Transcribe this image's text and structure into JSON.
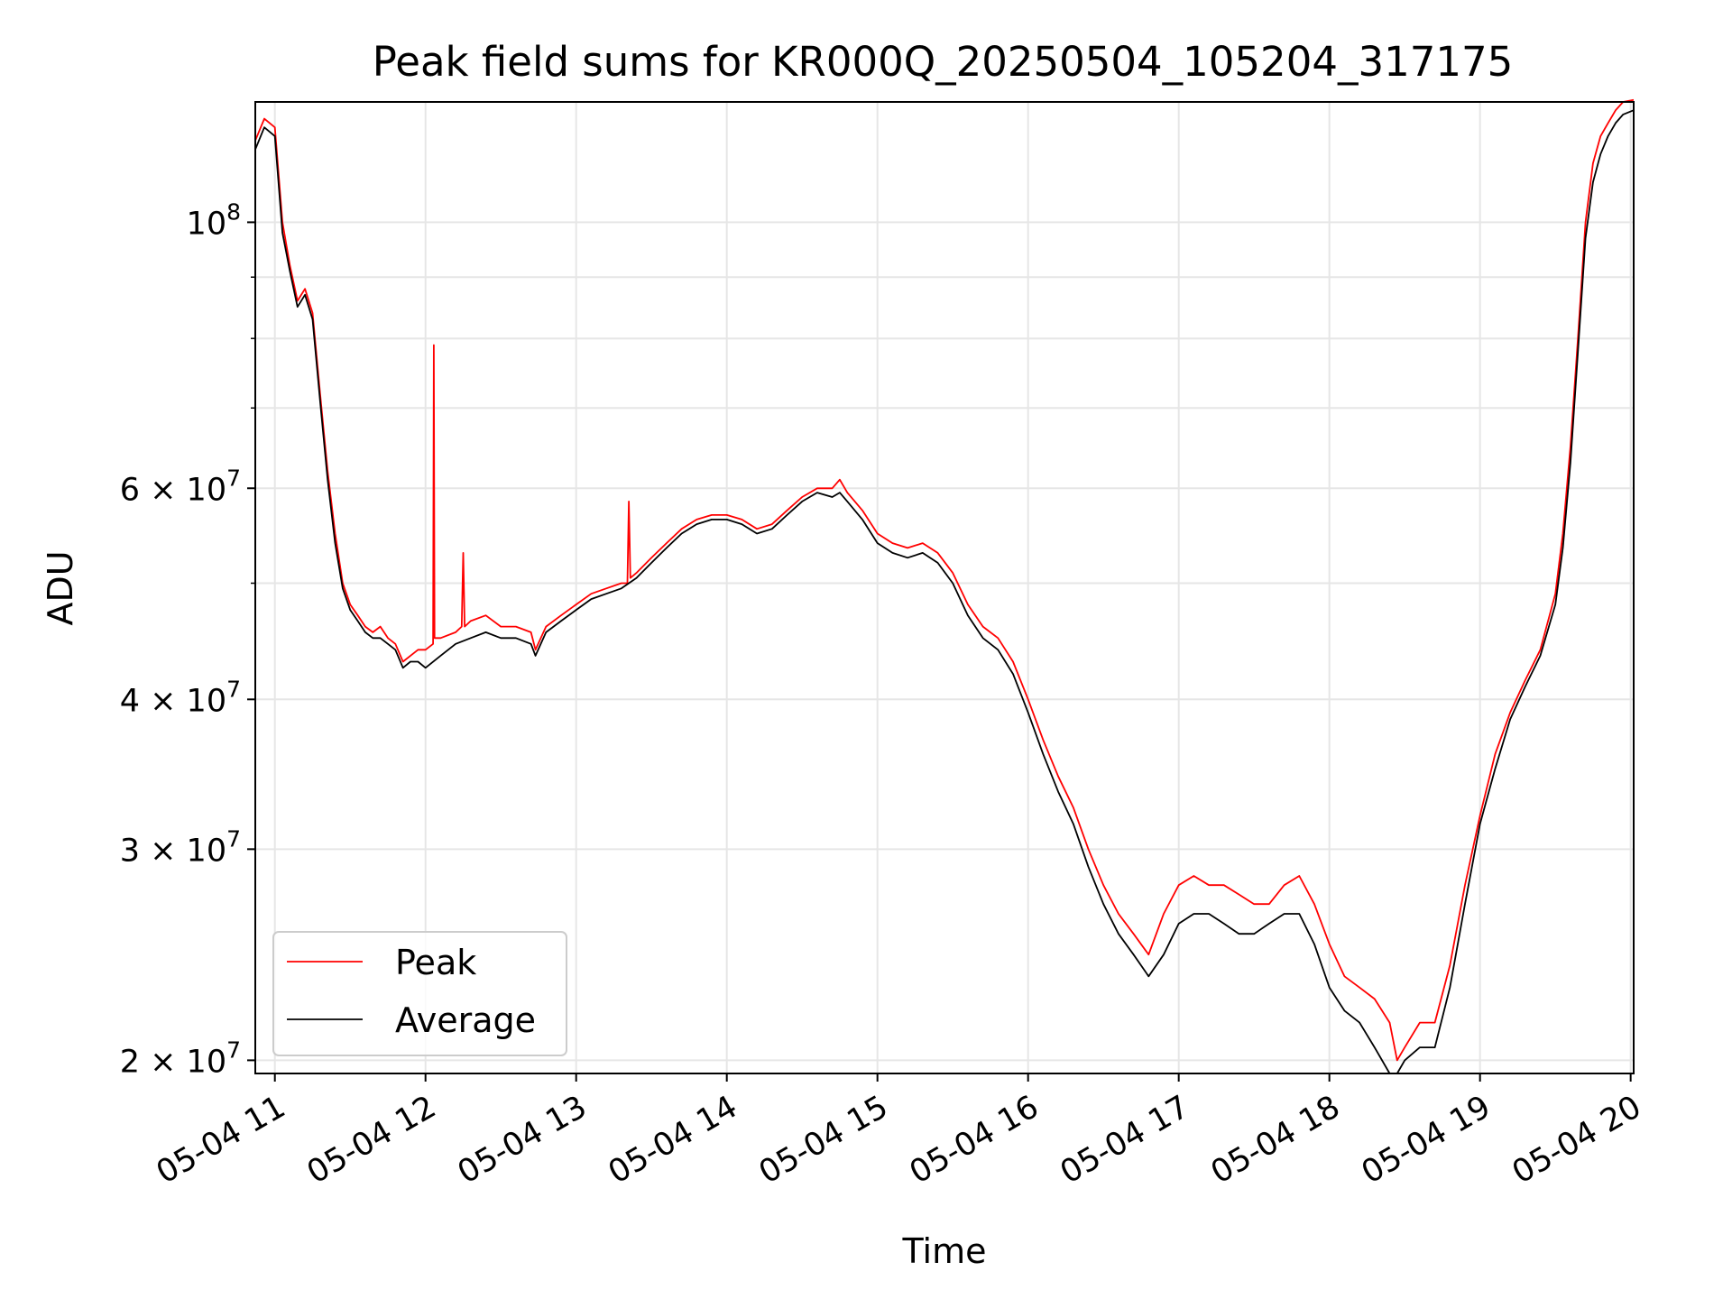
{
  "chart_data": {
    "type": "line",
    "title": "Peak field sums for KR000Q_20250504_105204_317175",
    "xlabel": "Time",
    "ylabel": "ADU",
    "x_range_hours": [
      10.87,
      20.02
    ],
    "y_scale": "log",
    "ylim": [
      19500000,
      126000000
    ],
    "grid": true,
    "legend_position": "lower-left",
    "x_ticks": [
      {
        "hour": 11,
        "label": "05-04 11"
      },
      {
        "hour": 12,
        "label": "05-04 12"
      },
      {
        "hour": 13,
        "label": "05-04 13"
      },
      {
        "hour": 14,
        "label": "05-04 14"
      },
      {
        "hour": 15,
        "label": "05-04 15"
      },
      {
        "hour": 16,
        "label": "05-04 16"
      },
      {
        "hour": 17,
        "label": "05-04 17"
      },
      {
        "hour": 18,
        "label": "05-04 18"
      },
      {
        "hour": 19,
        "label": "05-04 19"
      },
      {
        "hour": 20,
        "label": "05-04 20"
      }
    ],
    "y_ticks": [
      {
        "value": 20000000,
        "label": "2 × 10",
        "exp": "7"
      },
      {
        "value": 30000000,
        "label": "3 × 10",
        "exp": "7"
      },
      {
        "value": 40000000,
        "label": "4 × 10",
        "exp": "7"
      },
      {
        "value": 60000000,
        "label": "6 × 10",
        "exp": "7"
      },
      {
        "value": 100000000,
        "label": "10",
        "exp": "8"
      }
    ],
    "y_minor_ticks": [
      50000000,
      70000000,
      80000000,
      90000000
    ],
    "series": [
      {
        "name": "Peak",
        "color": "#ff0000",
        "x": [
          10.87,
          10.93,
          11.0,
          11.05,
          11.1,
          11.15,
          11.2,
          11.25,
          11.3,
          11.35,
          11.4,
          11.45,
          11.5,
          11.55,
          11.6,
          11.65,
          11.7,
          11.75,
          11.8,
          11.85,
          11.9,
          11.95,
          12.0,
          12.05,
          12.055,
          12.06,
          12.1,
          12.2,
          12.24,
          12.25,
          12.26,
          12.3,
          12.4,
          12.5,
          12.6,
          12.7,
          12.73,
          12.8,
          12.9,
          13.0,
          13.1,
          13.2,
          13.3,
          13.34,
          13.35,
          13.36,
          13.4,
          13.5,
          13.6,
          13.7,
          13.8,
          13.9,
          14.0,
          14.1,
          14.2,
          14.3,
          14.4,
          14.5,
          14.6,
          14.7,
          14.75,
          14.8,
          14.9,
          15.0,
          15.1,
          15.2,
          15.3,
          15.4,
          15.5,
          15.6,
          15.7,
          15.8,
          15.9,
          16.0,
          16.1,
          16.2,
          16.3,
          16.4,
          16.5,
          16.6,
          16.7,
          16.8,
          16.9,
          17.0,
          17.1,
          17.2,
          17.3,
          17.4,
          17.5,
          17.6,
          17.7,
          17.8,
          17.9,
          18.0,
          18.1,
          18.2,
          18.3,
          18.4,
          18.45,
          18.5,
          18.6,
          18.7,
          18.8,
          18.9,
          19.0,
          19.1,
          19.2,
          19.3,
          19.4,
          19.5,
          19.55,
          19.6,
          19.65,
          19.7,
          19.75,
          19.8,
          19.85,
          19.9,
          19.95,
          20.02
        ],
        "values": [
          117000000,
          122000000,
          120000000,
          100000000,
          92000000,
          86000000,
          88000000,
          84000000,
          72000000,
          62000000,
          55000000,
          50000000,
          48000000,
          47000000,
          46000000,
          45500000,
          46000000,
          45000000,
          44500000,
          43000000,
          43500000,
          44000000,
          44000000,
          44500000,
          79000000,
          45000000,
          45000000,
          45500000,
          46000000,
          53000000,
          46000000,
          46500000,
          47000000,
          46000000,
          46000000,
          45500000,
          44000000,
          46000000,
          47000000,
          48000000,
          49000000,
          49500000,
          50000000,
          50000000,
          58500000,
          50500000,
          51000000,
          52500000,
          54000000,
          55500000,
          56500000,
          57000000,
          57000000,
          56500000,
          55500000,
          56000000,
          57500000,
          59000000,
          60000000,
          60000000,
          61000000,
          59500000,
          57500000,
          55000000,
          54000000,
          53500000,
          54000000,
          53000000,
          51000000,
          48000000,
          46000000,
          45000000,
          43000000,
          40000000,
          37000000,
          34500000,
          32500000,
          30000000,
          28000000,
          26500000,
          25500000,
          24500000,
          26500000,
          28000000,
          28500000,
          28000000,
          28000000,
          27500000,
          27000000,
          27000000,
          28000000,
          28500000,
          27000000,
          25000000,
          23500000,
          23000000,
          22500000,
          21500000,
          20000000,
          20500000,
          21500000,
          21500000,
          24000000,
          28000000,
          32000000,
          36000000,
          39000000,
          41500000,
          44000000,
          49000000,
          55000000,
          65000000,
          80000000,
          100000000,
          112000000,
          118000000,
          121000000,
          124000000,
          126000000,
          126500000
        ]
      },
      {
        "name": "Average",
        "color": "#000000",
        "x": [
          10.87,
          10.93,
          11.0,
          11.05,
          11.1,
          11.15,
          11.2,
          11.25,
          11.3,
          11.35,
          11.4,
          11.45,
          11.5,
          11.55,
          11.6,
          11.65,
          11.7,
          11.75,
          11.8,
          11.85,
          11.9,
          11.95,
          12.0,
          12.1,
          12.2,
          12.3,
          12.4,
          12.5,
          12.6,
          12.7,
          12.73,
          12.8,
          12.9,
          13.0,
          13.1,
          13.2,
          13.3,
          13.4,
          13.5,
          13.6,
          13.7,
          13.8,
          13.9,
          14.0,
          14.1,
          14.2,
          14.3,
          14.4,
          14.5,
          14.6,
          14.7,
          14.75,
          14.8,
          14.9,
          15.0,
          15.1,
          15.2,
          15.3,
          15.4,
          15.5,
          15.6,
          15.7,
          15.8,
          15.9,
          16.0,
          16.1,
          16.2,
          16.3,
          16.4,
          16.5,
          16.6,
          16.7,
          16.8,
          16.9,
          17.0,
          17.1,
          17.2,
          17.3,
          17.4,
          17.5,
          17.6,
          17.7,
          17.8,
          17.9,
          18.0,
          18.1,
          18.2,
          18.3,
          18.4,
          18.45,
          18.5,
          18.6,
          18.7,
          18.8,
          18.9,
          19.0,
          19.1,
          19.2,
          19.3,
          19.4,
          19.5,
          19.55,
          19.6,
          19.65,
          19.7,
          19.75,
          19.8,
          19.85,
          19.9,
          19.95,
          20.02
        ],
        "values": [
          115000000,
          120000000,
          118000000,
          98000000,
          91000000,
          85000000,
          87000000,
          83000000,
          71000000,
          61000000,
          54000000,
          49500000,
          47500000,
          46500000,
          45500000,
          45000000,
          45000000,
          44500000,
          44000000,
          42500000,
          43000000,
          43000000,
          42500000,
          43500000,
          44500000,
          45000000,
          45500000,
          45000000,
          45000000,
          44500000,
          43500000,
          45500000,
          46500000,
          47500000,
          48500000,
          49000000,
          49500000,
          50500000,
          52000000,
          53500000,
          55000000,
          56000000,
          56500000,
          56500000,
          56000000,
          55000000,
          55500000,
          57000000,
          58500000,
          59500000,
          59000000,
          59500000,
          58500000,
          56500000,
          54000000,
          53000000,
          52500000,
          53000000,
          52000000,
          50000000,
          47000000,
          45000000,
          44000000,
          42000000,
          39000000,
          36000000,
          33500000,
          31500000,
          29000000,
          27000000,
          25500000,
          24500000,
          23500000,
          24500000,
          26000000,
          26500000,
          26500000,
          26000000,
          25500000,
          25500000,
          26000000,
          26500000,
          26500000,
          25000000,
          23000000,
          22000000,
          21500000,
          20500000,
          19500000,
          19500000,
          20000000,
          20500000,
          20500000,
          23000000,
          27000000,
          31500000,
          35000000,
          38500000,
          41000000,
          43500000,
          48000000,
          53500000,
          63000000,
          78000000,
          97000000,
          108000000,
          114000000,
          118000000,
          121000000,
          123000000,
          124000000
        ]
      }
    ]
  }
}
